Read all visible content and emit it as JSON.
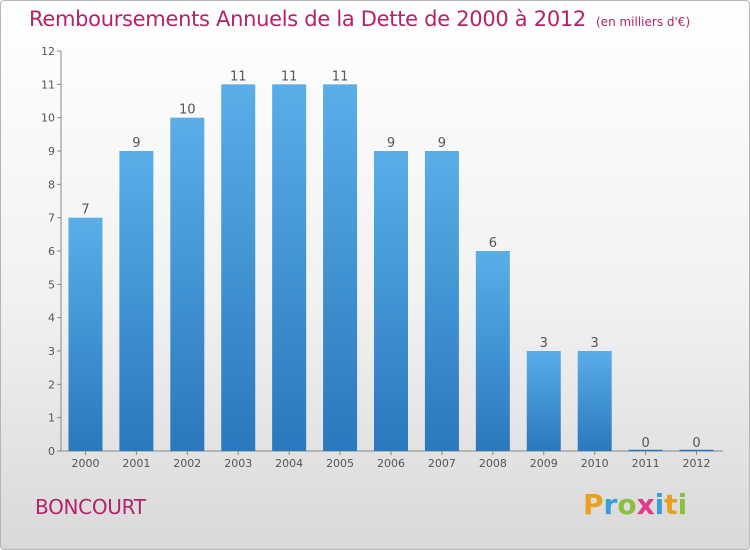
{
  "header": {
    "title": "Remboursements Annuels de la Dette de 2000 à 2012",
    "unit": "(en milliers d'€)"
  },
  "footer": {
    "commune": "BONCOURT",
    "logo_letters": [
      {
        "ch": "P",
        "color": "#e8a020"
      },
      {
        "ch": "r",
        "color": "#3a9fd8"
      },
      {
        "ch": "o",
        "color": "#8cbf3f"
      },
      {
        "ch": "x",
        "color": "#e03a8c"
      },
      {
        "ch": "i",
        "color": "#3a9fd8"
      },
      {
        "ch": "t",
        "color": "#e8a020"
      },
      {
        "ch": "i",
        "color": "#8cbf3f"
      }
    ]
  },
  "chart_data": {
    "type": "bar",
    "title": "Remboursements Annuels de la Dette de 2000 à 2012",
    "subtitle": "(en milliers d'€)",
    "xlabel": "",
    "ylabel": "",
    "categories": [
      "2000",
      "2001",
      "2002",
      "2003",
      "2004",
      "2005",
      "2006",
      "2007",
      "2008",
      "2009",
      "2010",
      "2011",
      "2012"
    ],
    "values": [
      7,
      9,
      10,
      11,
      11,
      11,
      9,
      9,
      6,
      3,
      3,
      0,
      0
    ],
    "data_labels": [
      "7",
      "9",
      "10",
      "11",
      "11",
      "11",
      "9",
      "9",
      "6",
      "3",
      "3",
      "0",
      "0"
    ],
    "ylim": [
      0,
      12
    ],
    "yticks": [
      0,
      1,
      2,
      3,
      4,
      5,
      6,
      7,
      8,
      9,
      10,
      11,
      12
    ],
    "grid": false,
    "colors": {
      "bar_top": "#5aaee8",
      "bar_bottom": "#2a78bd",
      "text": "#555555",
      "axis": "#888888"
    }
  }
}
